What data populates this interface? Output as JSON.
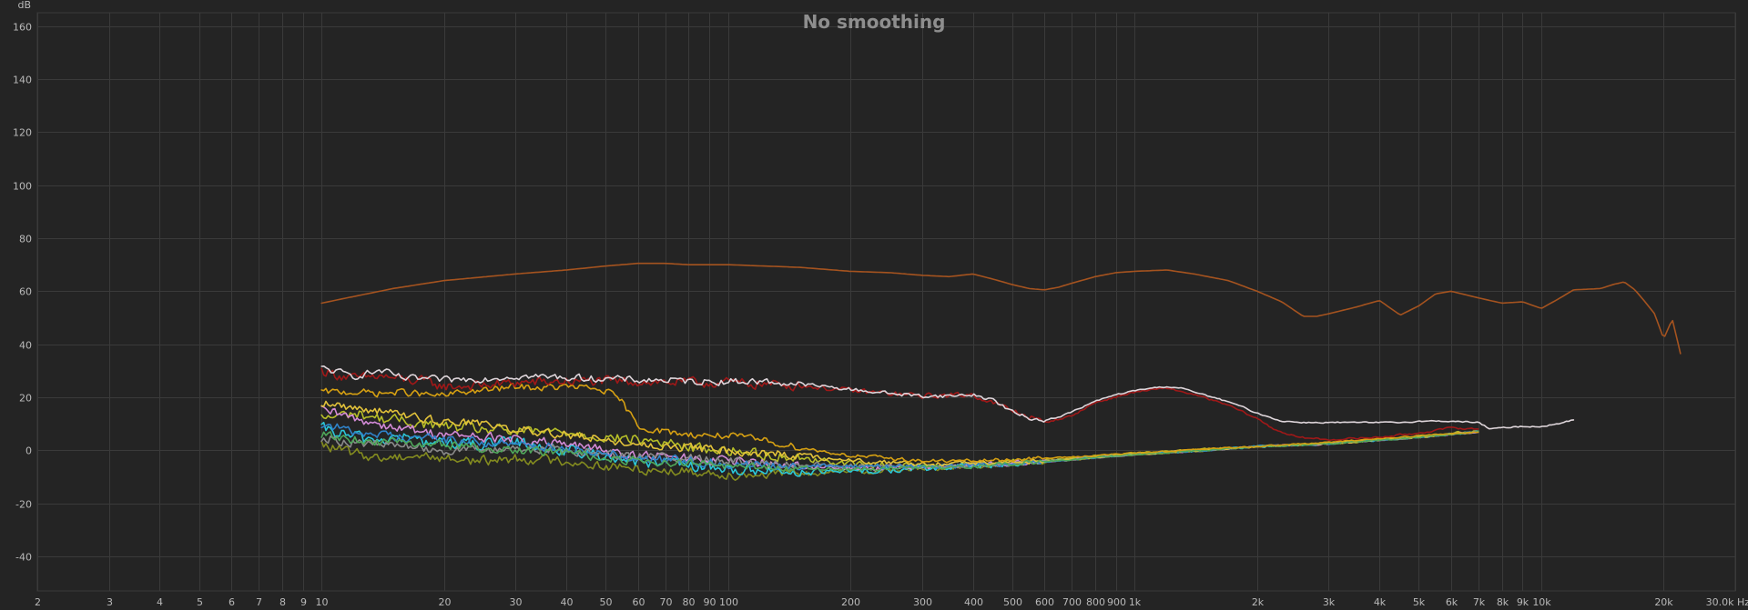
{
  "chart_data": {
    "type": "line",
    "title": "No smoothing",
    "y_unit_label": "dB",
    "x_unit_label": "Hz",
    "xscale": "log",
    "xlim": [
      2,
      30000
    ],
    "ylim": [
      -53,
      165
    ],
    "grid": true,
    "y_ticks": [
      {
        "value": 160,
        "label": "160"
      },
      {
        "value": 140,
        "label": "140"
      },
      {
        "value": 120,
        "label": "120"
      },
      {
        "value": 100,
        "label": "100"
      },
      {
        "value": 80,
        "label": "80"
      },
      {
        "value": 60,
        "label": "60"
      },
      {
        "value": 40,
        "label": "40"
      },
      {
        "value": 20,
        "label": "20"
      },
      {
        "value": 0,
        "label": "0"
      },
      {
        "value": -20,
        "label": "-20"
      },
      {
        "value": -40,
        "label": "-40"
      }
    ],
    "x_ticks": [
      {
        "value": 2,
        "label": "2"
      },
      {
        "value": 3,
        "label": "3"
      },
      {
        "value": 4,
        "label": "4"
      },
      {
        "value": 5,
        "label": "5"
      },
      {
        "value": 6,
        "label": "6"
      },
      {
        "value": 7,
        "label": "7"
      },
      {
        "value": 8,
        "label": "8"
      },
      {
        "value": 9,
        "label": "9"
      },
      {
        "value": 10,
        "label": "10"
      },
      {
        "value": 20,
        "label": "20"
      },
      {
        "value": 30,
        "label": "30"
      },
      {
        "value": 40,
        "label": "40"
      },
      {
        "value": 50,
        "label": "50"
      },
      {
        "value": 60,
        "label": "60"
      },
      {
        "value": 70,
        "label": "70"
      },
      {
        "value": 80,
        "label": "80"
      },
      {
        "value": 90,
        "label": "90"
      },
      {
        "value": 100,
        "label": "100"
      },
      {
        "value": 200,
        "label": "200"
      },
      {
        "value": 300,
        "label": "300"
      },
      {
        "value": 400,
        "label": "400"
      },
      {
        "value": 500,
        "label": "500"
      },
      {
        "value": 600,
        "label": "600"
      },
      {
        "value": 700,
        "label": "700"
      },
      {
        "value": 800,
        "label": "800"
      },
      {
        "value": 900,
        "label": "900"
      },
      {
        "value": 1000,
        "label": "1k"
      },
      {
        "value": 2000,
        "label": "2k"
      },
      {
        "value": 3000,
        "label": "3k"
      },
      {
        "value": 4000,
        "label": "4k"
      },
      {
        "value": 5000,
        "label": "5k"
      },
      {
        "value": 6000,
        "label": "6k"
      },
      {
        "value": 7000,
        "label": "7k"
      },
      {
        "value": 8000,
        "label": "8k"
      },
      {
        "value": 9000,
        "label": "9k"
      },
      {
        "value": 10000,
        "label": "10k"
      },
      {
        "value": 20000,
        "label": "20k"
      },
      {
        "value": 30000,
        "label": "30.0k"
      }
    ],
    "series": [
      {
        "color": "#a5531f",
        "jitter": 0,
        "x": [
          10,
          12,
          15,
          20,
          30,
          40,
          50,
          60,
          70,
          80,
          100,
          150,
          200,
          250,
          300,
          350,
          400,
          450,
          500,
          550,
          600,
          650,
          700,
          800,
          900,
          1000,
          1200,
          1400,
          1700,
          2000,
          2300,
          2600,
          2800,
          3000,
          3500,
          4000,
          4500,
          5000,
          5500,
          6000,
          7000,
          8000,
          9000,
          10000,
          11000,
          12000,
          14000,
          15000,
          16000,
          17000,
          18000,
          19000,
          20000,
          21000,
          22000
        ],
        "y": [
          55.5,
          58,
          61,
          64,
          66.5,
          68,
          69.5,
          70.5,
          70.5,
          70,
          70,
          69,
          67.5,
          67,
          66,
          65.5,
          66.5,
          64.5,
          62.5,
          61,
          60.5,
          61.5,
          63,
          65.5,
          67,
          67.5,
          68,
          66.5,
          64,
          60,
          56,
          50.5,
          50.5,
          51.5,
          54,
          56.5,
          51,
          54.5,
          59,
          60,
          57.5,
          55.5,
          56,
          53.5,
          57,
          60.5,
          61,
          62.5,
          63.5,
          60.5,
          56,
          51.5,
          42,
          49.5,
          36.5
        ]
      },
      {
        "color": "#a01818",
        "jitter": 2.6,
        "x": [
          10,
          12,
          14,
          16,
          18,
          20,
          25,
          30,
          40,
          50,
          60,
          80,
          100,
          150,
          200,
          300,
          400,
          500,
          600,
          700,
          800,
          1000,
          1200,
          1400,
          1700,
          2000,
          2200,
          2500,
          3000,
          3500,
          4000,
          5000,
          6000,
          7000
        ],
        "y": [
          30,
          27,
          28,
          26.5,
          26,
          24,
          24.5,
          25.5,
          26,
          26,
          26,
          25.5,
          25.5,
          24.5,
          22.5,
          20.5,
          21,
          15,
          10.5,
          13,
          18,
          22,
          23.5,
          21,
          17,
          12,
          8,
          5,
          4,
          4.5,
          5,
          6.5,
          8.5,
          8
        ]
      },
      {
        "color": "#ded5da",
        "jitter": 1.8,
        "x": [
          10,
          12,
          14,
          16,
          18,
          20,
          25,
          30,
          40,
          50,
          60,
          70,
          80,
          100,
          120,
          150,
          200,
          250,
          300,
          350,
          400,
          450,
          500,
          550,
          600,
          650,
          700,
          800,
          900,
          1000,
          1100,
          1200,
          1300,
          1400,
          1600,
          1800,
          2000,
          2300,
          2600,
          3000,
          3500,
          4000,
          4500,
          5000,
          6000,
          7000,
          7500,
          8000,
          9000,
          10000,
          11000,
          12000
        ],
        "y": [
          31,
          28,
          30,
          27,
          27,
          26.5,
          27,
          28,
          27.5,
          27,
          26.5,
          26.5,
          26,
          26,
          26,
          25,
          23,
          21.5,
          20.5,
          20.5,
          21,
          19,
          14.5,
          12,
          11.5,
          12.5,
          14.5,
          18.5,
          21,
          22.5,
          23.5,
          24,
          23.5,
          22,
          19.5,
          17,
          14,
          11,
          10.5,
          10.5,
          10.5,
          10.5,
          10.5,
          11,
          11,
          10.5,
          8,
          8.5,
          9,
          9,
          10,
          11.5
        ]
      },
      {
        "color": "#d6a012",
        "jitter": 1.8,
        "x": [
          10,
          12,
          14,
          16,
          18,
          20,
          22,
          25,
          30,
          35,
          40,
          45,
          50,
          55,
          60,
          70,
          80,
          100,
          120,
          150,
          200,
          250,
          300,
          400,
          500,
          700,
          1000,
          1500,
          2000,
          3000,
          4000,
          5000,
          7000
        ],
        "y": [
          22,
          22,
          21.5,
          22,
          21,
          20.5,
          22,
          22.5,
          24,
          23.5,
          24,
          23.5,
          22.5,
          18,
          9,
          7,
          6,
          5.5,
          4,
          1,
          -2,
          -3,
          -4,
          -4,
          -3.5,
          -2.5,
          -1,
          0.5,
          1.5,
          3,
          4.5,
          5.5,
          7
        ]
      },
      {
        "color": "#b7bf28",
        "jitter": 2.8,
        "x": [
          10,
          12,
          14,
          16,
          18,
          20,
          25,
          30,
          40,
          50,
          60,
          70,
          80,
          100,
          150,
          200,
          300,
          400,
          500,
          700,
          1000,
          1500,
          2000,
          3000,
          5000,
          7000
        ],
        "y": [
          12,
          14,
          12,
          11,
          10,
          9,
          8,
          7,
          7,
          5,
          4,
          3,
          1,
          0,
          -3,
          -5,
          -6,
          -5.5,
          -4.5,
          -3,
          -1,
          0.5,
          1.5,
          2.5,
          5,
          7.5
        ]
      },
      {
        "color": "#838b1f",
        "jitter": 2.6,
        "x": [
          10,
          12,
          14,
          16,
          18,
          20,
          25,
          30,
          40,
          50,
          60,
          80,
          100,
          150,
          200,
          300,
          400,
          500,
          700,
          1000,
          1500,
          2000,
          3000,
          5000,
          7000
        ],
        "y": [
          2,
          -1,
          -3,
          -2,
          -2,
          -3,
          -4,
          -3,
          -4,
          -6,
          -7,
          -8,
          -9,
          -9,
          -8,
          -7,
          -6,
          -5,
          -3.5,
          -1.5,
          0,
          1.5,
          2.5,
          5,
          7
        ]
      },
      {
        "color": "#2bc6d8",
        "jitter": 3.2,
        "x": [
          10,
          12,
          14,
          16,
          18,
          20,
          25,
          30,
          40,
          50,
          60,
          80,
          100,
          150,
          200,
          300,
          400,
          500,
          700,
          1000,
          1500,
          2000,
          3000,
          5000,
          7000
        ],
        "y": [
          8,
          5,
          4,
          5,
          3,
          3,
          2,
          3,
          0,
          -2,
          -4,
          -6,
          -7,
          -8,
          -8,
          -7,
          -6,
          -5,
          -3.5,
          -1.5,
          0,
          1.5,
          2.5,
          5,
          7
        ]
      },
      {
        "color": "#d28ad6",
        "jitter": 2.6,
        "x": [
          10,
          12,
          14,
          16,
          18,
          20,
          25,
          30,
          40,
          50,
          60,
          80,
          100,
          150,
          200,
          300,
          400,
          500,
          700,
          1000,
          1500,
          2000,
          3000,
          5000,
          7000
        ],
        "y": [
          15,
          12,
          10,
          8,
          7,
          6,
          5,
          4,
          2,
          0,
          -2,
          -3,
          -4,
          -6,
          -7,
          -6,
          -5.5,
          -5,
          -3.5,
          -1.5,
          0,
          1.5,
          2.5,
          5,
          7
        ]
      },
      {
        "color": "#8a8a8a",
        "jitter": 2.4,
        "x": [
          10,
          12,
          14,
          16,
          18,
          20,
          25,
          30,
          40,
          50,
          60,
          80,
          100,
          150,
          200,
          300,
          400,
          500,
          700,
          1000,
          1500,
          2000,
          3000,
          5000,
          7000
        ],
        "y": [
          5,
          3,
          2,
          2,
          1,
          0,
          0,
          1,
          0,
          -1,
          -2,
          -3,
          -4,
          -5,
          -6,
          -6,
          -5.5,
          -5,
          -3.5,
          -1.5,
          0,
          1.5,
          2.5,
          5,
          7
        ]
      },
      {
        "color": "#2f83c9",
        "jitter": 2.4,
        "x": [
          10,
          12,
          14,
          16,
          18,
          20,
          25,
          30,
          40,
          50,
          60,
          80,
          100,
          150,
          200,
          300,
          400,
          500,
          700,
          1000,
          1500,
          2000,
          3000,
          5000,
          7000
        ],
        "y": [
          10,
          7,
          6,
          5,
          5,
          4,
          3,
          2,
          1,
          -1,
          -3,
          -4,
          -5,
          -6,
          -6,
          -6,
          -5.5,
          -5,
          -3.5,
          -1.5,
          0,
          1.5,
          2.5,
          5,
          7
        ]
      },
      {
        "color": "#e2c23a",
        "jitter": 2.2,
        "x": [
          10,
          12,
          14,
          16,
          18,
          20,
          25,
          30,
          40,
          50,
          60,
          80,
          100,
          150,
          200,
          300,
          400,
          500,
          700,
          1000,
          1500,
          2000,
          3000,
          5000,
          7000
        ],
        "y": [
          18,
          16,
          15,
          13,
          12,
          11,
          10,
          8,
          6,
          4,
          2,
          1,
          0,
          -2,
          -4,
          -5,
          -5,
          -4.5,
          -3.5,
          -1.5,
          0,
          1.5,
          2.5,
          5,
          7
        ]
      },
      {
        "color": "#4fa85a",
        "jitter": 2.2,
        "x": [
          10,
          12,
          14,
          16,
          18,
          20,
          25,
          30,
          40,
          50,
          60,
          80,
          100,
          150,
          200,
          300,
          400,
          500,
          700,
          1000,
          1500,
          2000,
          3000,
          5000,
          7000
        ],
        "y": [
          6,
          4,
          3,
          3,
          2,
          2,
          1,
          0,
          -1,
          -3,
          -4,
          -5,
          -6,
          -7,
          -7,
          -6.5,
          -6,
          -5,
          -3.5,
          -1.5,
          0,
          1.5,
          2.5,
          5,
          7
        ]
      }
    ]
  }
}
